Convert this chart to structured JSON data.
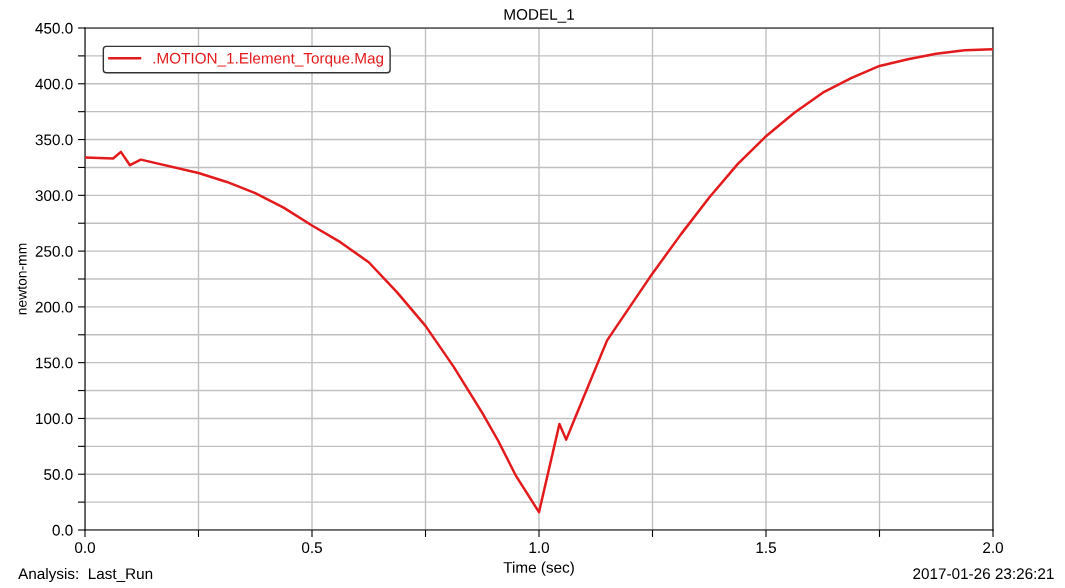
{
  "chart_data": {
    "type": "line",
    "title": "MODEL_1",
    "xlabel": "Time (sec)",
    "ylabel": "newton-mm",
    "annotations": [
      "Analysis:  Last_Run",
      "2017-01-26 23:26:21"
    ],
    "series": [
      {
        "name": ".MOTION_1.Element_Torque.Mag",
        "color": "#e31a1c",
        "x": [
          0,
          0.062,
          0.079,
          0.099,
          0.123,
          0.25,
          0.3125,
          0.375,
          0.4375,
          0.5,
          0.5625,
          0.625,
          0.6875,
          0.75,
          0.8125,
          0.875,
          0.91,
          0.95,
          1.0,
          1.045,
          1.06,
          1.08,
          1.15,
          1.2,
          1.25,
          1.3125,
          1.375,
          1.4375,
          1.5,
          1.5625,
          1.625,
          1.6875,
          1.75,
          1.8125,
          1.875,
          1.9375,
          2.0
        ],
        "values": [
          334,
          333,
          339,
          327,
          332,
          320,
          312,
          302,
          289,
          273,
          258,
          240,
          213,
          183,
          146,
          105,
          80,
          48,
          16,
          95,
          81,
          101,
          170,
          200,
          230,
          265,
          298,
          328,
          353,
          374,
          392,
          405,
          416,
          422,
          427,
          430,
          431
        ]
      }
    ],
    "xlim": [
      0,
      2
    ],
    "ylim": [
      0,
      450
    ],
    "xticks": [
      {
        "value": 0,
        "label": "0.0"
      },
      {
        "value": 0.25,
        "label": null
      },
      0.5,
      {
        "value": 0.75,
        "label": null
      },
      {
        "value": 1,
        "label": "1.0"
      },
      {
        "value": 1.25,
        "label": null
      },
      1.5,
      {
        "value": 1.75,
        "label": null
      },
      {
        "value": 2,
        "label": "2.0"
      }
    ],
    "yticks": [
      {
        "value": 0,
        "label": "0.0"
      },
      {
        "value": 25,
        "label": null
      },
      {
        "value": 50,
        "label": "50.0"
      },
      {
        "value": 75,
        "label": null
      },
      {
        "value": 100,
        "label": "100.0"
      },
      {
        "value": 125,
        "label": null
      },
      {
        "value": 150,
        "label": "150.0"
      },
      {
        "value": 175,
        "label": null
      },
      {
        "value": 200,
        "label": "200.0"
      },
      {
        "value": 225,
        "label": null
      },
      {
        "value": 250,
        "label": "250.0"
      },
      {
        "value": 275,
        "label": null
      },
      {
        "value": 300,
        "label": "300.0"
      },
      {
        "value": 325,
        "label": null
      },
      {
        "value": 350,
        "label": "350.0"
      },
      {
        "value": 375,
        "label": null
      },
      {
        "value": 400,
        "label": "400.0"
      },
      {
        "value": 425,
        "label": null
      },
      {
        "value": 450,
        "label": "450.0"
      }
    ],
    "grid": true,
    "legend": "top left",
    "marker": "none",
    "line_style": "solid"
  }
}
